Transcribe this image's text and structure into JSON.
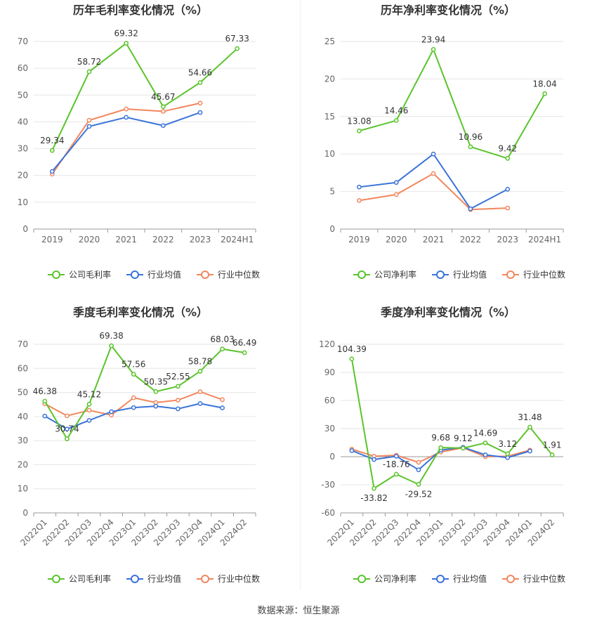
{
  "source": "数据来源：恒生聚源",
  "colors": {
    "company": "#5ac42b",
    "avg": "#3a73d9",
    "median": "#f2875e",
    "grid": "#e6e6e6",
    "axis": "#666666"
  },
  "chart_data": [
    {
      "type": "line",
      "title": "历年毛利率变化情况（%）",
      "categories": [
        "2019",
        "2020",
        "2021",
        "2022",
        "2023",
        "2024H1"
      ],
      "ylim": [
        0,
        70
      ],
      "yticks": [
        0,
        10,
        20,
        30,
        40,
        50,
        60,
        70
      ],
      "grid": true,
      "legend_position": "bottom",
      "rotate_x_labels": false,
      "series": [
        {
          "name": "公司毛利率",
          "key": "company",
          "values": [
            29.34,
            58.72,
            69.32,
            45.67,
            54.66,
            67.33
          ],
          "labels": [
            "29.34",
            "58.72",
            "69.32",
            "45.67",
            "54.66",
            "67.33"
          ]
        },
        {
          "name": "行业均值",
          "key": "avg",
          "values": [
            21.5,
            38.3,
            41.7,
            38.6,
            43.5,
            null
          ]
        },
        {
          "name": "行业中位数",
          "key": "median",
          "values": [
            20.5,
            40.6,
            44.8,
            43.9,
            47.0,
            null
          ]
        }
      ]
    },
    {
      "type": "line",
      "title": "历年净利率变化情况（%）",
      "categories": [
        "2019",
        "2020",
        "2021",
        "2022",
        "2023",
        "2024H1"
      ],
      "ylim": [
        0,
        25
      ],
      "yticks": [
        0,
        5,
        10,
        15,
        20,
        25
      ],
      "grid": true,
      "legend_position": "bottom",
      "rotate_x_labels": false,
      "series": [
        {
          "name": "公司净利率",
          "key": "company",
          "values": [
            13.08,
            14.46,
            23.94,
            10.96,
            9.42,
            18.04
          ],
          "labels": [
            "13.08",
            "14.46",
            "23.94",
            "10.96",
            "9.42",
            "18.04"
          ]
        },
        {
          "name": "行业均值",
          "key": "avg",
          "values": [
            5.6,
            6.2,
            10.0,
            2.7,
            5.3,
            null
          ]
        },
        {
          "name": "行业中位数",
          "key": "median",
          "values": [
            3.8,
            4.6,
            7.4,
            2.6,
            2.8,
            null
          ]
        }
      ]
    },
    {
      "type": "line",
      "title": "季度毛利率变化情况（%）",
      "categories": [
        "2022Q1",
        "2022Q2",
        "2022Q3",
        "2022Q4",
        "2023Q1",
        "2023Q2",
        "2023Q3",
        "2023Q4",
        "2024Q1",
        "2024Q2"
      ],
      "ylim": [
        0,
        70
      ],
      "yticks": [
        0,
        10,
        20,
        30,
        40,
        50,
        60,
        70
      ],
      "grid": true,
      "legend_position": "bottom",
      "rotate_x_labels": true,
      "series": [
        {
          "name": "公司毛利率",
          "key": "company",
          "values": [
            46.38,
            30.74,
            45.12,
            69.38,
            57.56,
            50.35,
            52.55,
            58.78,
            68.03,
            66.49
          ],
          "labels": [
            "46.38",
            "30.74",
            "45.12",
            "69.38",
            "57.56",
            "50.35",
            "52.55",
            "58.78",
            "68.03",
            "66.49"
          ]
        },
        {
          "name": "行业均值",
          "key": "avg",
          "values": [
            40.2,
            34.8,
            38.4,
            42.0,
            43.7,
            44.3,
            43.2,
            45.4,
            43.6,
            null
          ]
        },
        {
          "name": "行业中位数",
          "key": "median",
          "values": [
            45.3,
            40.3,
            42.6,
            40.6,
            47.8,
            45.8,
            46.8,
            50.3,
            47.0,
            null
          ]
        }
      ]
    },
    {
      "type": "line",
      "title": "季度净利率变化情况（%）",
      "categories": [
        "2022Q1",
        "2022Q2",
        "2022Q3",
        "2022Q4",
        "2023Q1",
        "2023Q2",
        "2023Q3",
        "2023Q4",
        "2024Q1",
        "2024Q2"
      ],
      "ylim": [
        -60,
        120
      ],
      "yticks": [
        -60,
        -30,
        0,
        30,
        60,
        90,
        120
      ],
      "grid": true,
      "legend_position": "bottom",
      "rotate_x_labels": true,
      "series": [
        {
          "name": "公司净利率",
          "key": "company",
          "values": [
            104.39,
            -33.82,
            -18.76,
            -29.52,
            9.68,
            9.12,
            14.69,
            3.12,
            31.48,
            1.91
          ],
          "labels": [
            "104.39",
            "-33.82",
            "-18.76",
            "-29.52",
            "9.68",
            "9.12",
            "14.69",
            "3.12",
            "31.48",
            "1.91"
          ]
        },
        {
          "name": "行业均值",
          "key": "avg",
          "values": [
            6.5,
            -3.0,
            0.5,
            -14.0,
            7.0,
            10.0,
            2.0,
            -1.0,
            6.0,
            null
          ]
        },
        {
          "name": "行业中位数",
          "key": "median",
          "values": [
            8.0,
            0.5,
            1.5,
            -6.0,
            5.0,
            9.5,
            0.0,
            0.5,
            7.0,
            null
          ]
        }
      ]
    }
  ]
}
